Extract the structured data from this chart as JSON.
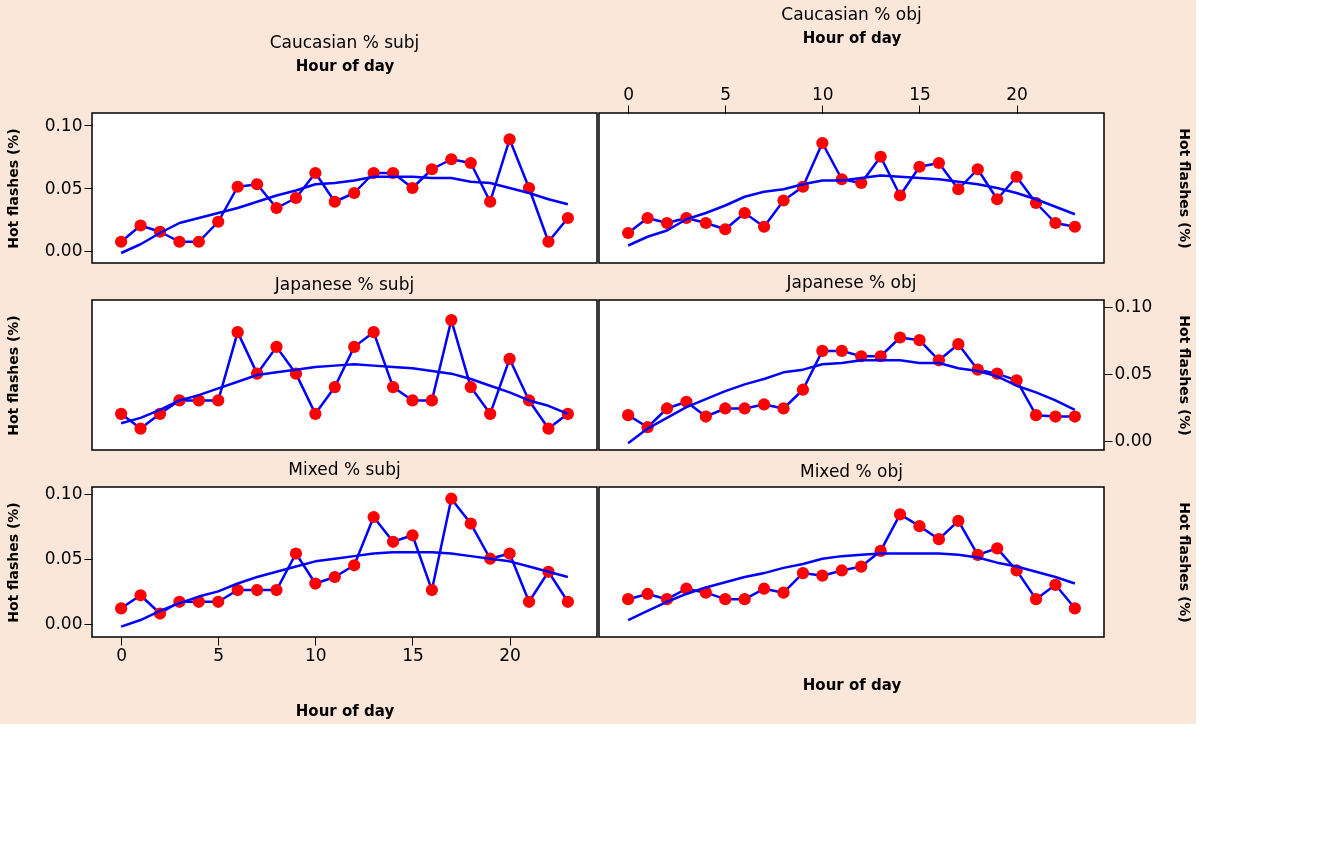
{
  "chart_data": [
    {
      "type": "line",
      "title": "Caucasian % subj",
      "xlabel": "Hour of day",
      "ylabel": "Hot flashes (%)",
      "x": [
        0,
        1,
        2,
        3,
        4,
        5,
        6,
        7,
        8,
        9,
        10,
        11,
        12,
        13,
        14,
        15,
        16,
        17,
        18,
        19,
        20,
        21,
        22,
        23
      ],
      "xlim": [
        -1.5,
        24.5
      ],
      "ylim": [
        -0.01,
        0.11
      ],
      "yticks": [
        {
          "value": 0,
          "label": "0.00"
        },
        {
          "value": 0.05,
          "label": "0.05"
        },
        {
          "value": 0.1,
          "label": "0.10"
        }
      ],
      "tick_labels": "y",
      "series": [
        {
          "color": "#0000ff",
          "marker": "circle",
          "colors": [
            "#ff0000",
            "#ff0000",
            "#ff0000",
            "#ff0000",
            "#ff0000",
            "#ff0000",
            "#ff0000",
            "#ff0000",
            "#ff0000",
            "#ff0000",
            "#ff0000",
            "#ff0000",
            "#ff0000",
            "#ff0000",
            "#ff0000",
            "#ff0000",
            "#ff0000",
            "#ff0000",
            "#ff0000",
            "#ff0000",
            "#ff0000",
            "#ff0000",
            "#ff0000",
            "#ff0000"
          ],
          "values": [
            0.007,
            0.02,
            0.015,
            0.007,
            0.007,
            0.023,
            0.051,
            0.053,
            0.034,
            0.042,
            0.062,
            0.039,
            0.046,
            0.062,
            0.062,
            0.05,
            0.065,
            0.073,
            0.07,
            0.039,
            0.089,
            0.05,
            0.007,
            0.026
          ]
        },
        {
          "color": "#0000ff",
          "marker": "none",
          "values": [
            -0.002,
            0.005,
            0.014,
            0.022,
            0.026,
            0.03,
            0.034,
            0.039,
            0.044,
            0.048,
            0.053,
            0.054,
            0.056,
            0.059,
            0.059,
            0.059,
            0.058,
            0.058,
            0.055,
            0.054,
            0.05,
            0.046,
            0.041,
            0.037
          ]
        }
      ]
    },
    {
      "type": "line",
      "title": "Caucasian % obj",
      "xlabel": "Hour of day",
      "ylabel": "Hot flashes (%)",
      "x": [
        0,
        1,
        2,
        3,
        4,
        5,
        6,
        7,
        8,
        9,
        10,
        11,
        12,
        13,
        14,
        15,
        16,
        17,
        18,
        19,
        20,
        21,
        22,
        23
      ],
      "xlim": [
        -1.5,
        24.5
      ],
      "ylim": [
        -0.01,
        0.11
      ],
      "xticks": [
        0,
        5,
        10,
        15,
        20
      ],
      "tick_labels": "x",
      "series": [
        {
          "color": "#0000ff",
          "marker": "circle",
          "colors": [
            "#ff0000",
            "#ff0000",
            "#ff0000",
            "#ff0000",
            "#ff0000",
            "#ff0000",
            "#ff0000",
            "#ff0000",
            "#ff0000",
            "#ff0000",
            "#ff0000",
            "#ff0000",
            "#ff0000",
            "#ff0000",
            "#ff0000",
            "#ff0000",
            "#ff0000",
            "#ff0000",
            "#ff0000",
            "#ff0000",
            "#ff0000",
            "#ff0000",
            "#ff0000",
            "#ff0000"
          ],
          "values": [
            0.014,
            0.026,
            0.022,
            0.026,
            0.022,
            0.017,
            0.03,
            0.019,
            0.04,
            0.051,
            0.086,
            0.057,
            0.054,
            0.075,
            0.044,
            0.067,
            0.07,
            0.049,
            0.065,
            0.041,
            0.059,
            0.038,
            0.022,
            0.019
          ]
        },
        {
          "color": "#0000ff",
          "marker": "none",
          "values": [
            0.004,
            0.011,
            0.016,
            0.025,
            0.03,
            0.036,
            0.043,
            0.047,
            0.049,
            0.053,
            0.056,
            0.056,
            0.058,
            0.06,
            0.059,
            0.058,
            0.057,
            0.055,
            0.053,
            0.05,
            0.046,
            0.041,
            0.035,
            0.029
          ]
        }
      ]
    },
    {
      "type": "line",
      "title": "Japanese % subj",
      "ylabel": "Hot flashes (%)",
      "x": [
        0,
        1,
        2,
        3,
        4,
        5,
        6,
        7,
        8,
        9,
        10,
        11,
        12,
        13,
        14,
        15,
        16,
        17,
        18,
        19,
        20,
        21,
        22,
        23
      ],
      "xlim": [
        -1.5,
        24.5
      ],
      "ylim": [
        -0.007,
        0.105
      ],
      "tick_labels": false,
      "series": [
        {
          "color": "#0000ff",
          "marker": "circle",
          "colors": [
            "#ff0000",
            "#ff0000",
            "#ff0000",
            "#ff0000",
            "#ff0000",
            "#ff0000",
            "#ff0000",
            "#ff0000",
            "#ff0000",
            "#ff0000",
            "#ff0000",
            "#ff0000",
            "#ff0000",
            "#ff0000",
            "#ff0000",
            "#ff0000",
            "#ff0000",
            "#ff0000",
            "#ff0000",
            "#ff0000",
            "#ff0000",
            "#ff0000",
            "#ff0000",
            "#ff0000"
          ],
          "values": [
            0.02,
            0.009,
            0.02,
            0.03,
            0.03,
            0.03,
            0.081,
            0.05,
            0.07,
            0.05,
            0.02,
            0.04,
            0.07,
            0.081,
            0.04,
            0.03,
            0.03,
            0.09,
            0.04,
            0.02,
            0.061,
            0.03,
            0.009,
            0.02
          ]
        },
        {
          "color": "#0000ff",
          "marker": "none",
          "values": [
            0.013,
            0.017,
            0.023,
            0.03,
            0.034,
            0.039,
            0.044,
            0.049,
            0.051,
            0.053,
            0.055,
            0.056,
            0.057,
            0.056,
            0.055,
            0.054,
            0.052,
            0.05,
            0.046,
            0.041,
            0.036,
            0.03,
            0.026,
            0.02
          ]
        }
      ]
    },
    {
      "type": "line",
      "title": "Japanese % obj",
      "ylabel": "Hot flashes (%)",
      "x": [
        0,
        1,
        2,
        3,
        4,
        5,
        6,
        7,
        8,
        9,
        10,
        11,
        12,
        13,
        14,
        15,
        16,
        17,
        18,
        19,
        20,
        21,
        22,
        23
      ],
      "xlim": [
        -1.5,
        24.5
      ],
      "ylim": [
        -0.007,
        0.105
      ],
      "yticks": [
        {
          "value": 0,
          "label": "0.00"
        },
        {
          "value": 0.05,
          "label": "0.05"
        },
        {
          "value": 0.1,
          "label": "0.10"
        }
      ],
      "tick_labels": "y",
      "series": [
        {
          "color": "#0000ff",
          "marker": "circle",
          "colors": [
            "#ff0000",
            "#ff0000",
            "#ff0000",
            "#ff0000",
            "#ff0000",
            "#ff0000",
            "#ff0000",
            "#ff0000",
            "#ff0000",
            "#ff0000",
            "#ff0000",
            "#ff0000",
            "#ff0000",
            "#ff0000",
            "#ff0000",
            "#ff0000",
            "#ff0000",
            "#ff0000",
            "#ff0000",
            "#ff0000",
            "#ff0000",
            "#ff0000",
            "#ff0000",
            "#ff0000"
          ],
          "values": [
            0.019,
            0.01,
            0.024,
            0.029,
            0.018,
            0.024,
            0.024,
            0.027,
            0.024,
            0.038,
            0.067,
            0.067,
            0.063,
            0.063,
            0.077,
            0.075,
            0.06,
            0.072,
            0.053,
            0.05,
            0.045,
            0.019,
            0.018,
            0.018
          ]
        },
        {
          "color": "#0000ff",
          "marker": "none",
          "values": [
            -0.002,
            0.009,
            0.017,
            0.025,
            0.031,
            0.037,
            0.042,
            0.046,
            0.051,
            0.053,
            0.057,
            0.058,
            0.06,
            0.06,
            0.06,
            0.058,
            0.058,
            0.054,
            0.052,
            0.048,
            0.041,
            0.036,
            0.03,
            0.023
          ]
        }
      ]
    },
    {
      "type": "line",
      "title": "Mixed % subj",
      "xlabel": "Hour of day",
      "ylabel": "Hot flashes (%)",
      "x": [
        0,
        1,
        2,
        3,
        4,
        5,
        6,
        7,
        8,
        9,
        10,
        11,
        12,
        13,
        14,
        15,
        16,
        17,
        18,
        19,
        20,
        21,
        22,
        23
      ],
      "xlim": [
        -1.5,
        24.5
      ],
      "ylim": [
        -0.01,
        0.105
      ],
      "xticks": [
        0,
        5,
        10,
        15,
        20
      ],
      "yticks": [
        {
          "value": 0,
          "label": "0.00"
        },
        {
          "value": 0.05,
          "label": "0.05"
        },
        {
          "value": 0.1,
          "label": "0.10"
        }
      ],
      "series": [
        {
          "color": "#0000ff",
          "marker": "circle",
          "colors": [
            "#ff0000",
            "#ff0000",
            "#ff0000",
            "#ff0000",
            "#ff0000",
            "#ff0000",
            "#ff0000",
            "#ff0000",
            "#ff0000",
            "#ff0000",
            "#ff0000",
            "#ff0000",
            "#ff0000",
            "#ff0000",
            "#ff0000",
            "#ff0000",
            "#ff0000",
            "#ff0000",
            "#ff0000",
            "#ff0000",
            "#ff0000",
            "#ff0000",
            "#ff0000",
            "#ff0000"
          ],
          "values": [
            0.012,
            0.022,
            0.008,
            0.017,
            0.017,
            0.017,
            0.026,
            0.026,
            0.026,
            0.054,
            0.031,
            0.036,
            0.045,
            0.082,
            0.063,
            0.068,
            0.026,
            0.096,
            0.077,
            0.05,
            0.054,
            0.017,
            0.04,
            0.017
          ]
        },
        {
          "color": "#0000ff",
          "marker": "none",
          "values": [
            -0.002,
            0.003,
            0.01,
            0.016,
            0.021,
            0.025,
            0.031,
            0.036,
            0.04,
            0.044,
            0.048,
            0.05,
            0.052,
            0.054,
            0.055,
            0.055,
            0.055,
            0.054,
            0.052,
            0.05,
            0.048,
            0.044,
            0.04,
            0.036
          ]
        }
      ]
    },
    {
      "type": "line",
      "title": "Mixed % obj",
      "xlabel": "Hour of day",
      "ylabel": "Hot flashes (%)",
      "x": [
        0,
        1,
        2,
        3,
        4,
        5,
        6,
        7,
        8,
        9,
        10,
        11,
        12,
        13,
        14,
        15,
        16,
        17,
        18,
        19,
        20,
        21,
        22,
        23
      ],
      "xlim": [
        -1.5,
        24.5
      ],
      "ylim": [
        -0.01,
        0.105
      ],
      "tick_labels": false,
      "series": [
        {
          "color": "#0000ff",
          "marker": "circle",
          "colors": [
            "#ff0000",
            "#ff0000",
            "#ff0000",
            "#ff0000",
            "#ff0000",
            "#ff0000",
            "#ff0000",
            "#ff0000",
            "#ff0000",
            "#ff0000",
            "#ff0000",
            "#ff0000",
            "#ff0000",
            "#ff0000",
            "#ff0000",
            "#ff0000",
            "#ff0000",
            "#ff0000",
            "#ff0000",
            "#ff0000",
            "#ff0000",
            "#ff0000",
            "#ff0000",
            "#ff0000"
          ],
          "values": [
            0.019,
            0.023,
            0.019,
            0.027,
            0.024,
            0.019,
            0.019,
            0.027,
            0.024,
            0.039,
            0.037,
            0.041,
            0.044,
            0.056,
            0.084,
            0.075,
            0.065,
            0.079,
            0.053,
            0.058,
            0.041,
            0.019,
            0.03,
            0.012
          ]
        },
        {
          "color": "#0000ff",
          "marker": "none",
          "values": [
            0.003,
            0.01,
            0.017,
            0.023,
            0.028,
            0.032,
            0.036,
            0.039,
            0.043,
            0.046,
            0.05,
            0.052,
            0.053,
            0.054,
            0.054,
            0.054,
            0.054,
            0.053,
            0.051,
            0.047,
            0.044,
            0.04,
            0.036,
            0.031
          ]
        }
      ]
    }
  ]
}
